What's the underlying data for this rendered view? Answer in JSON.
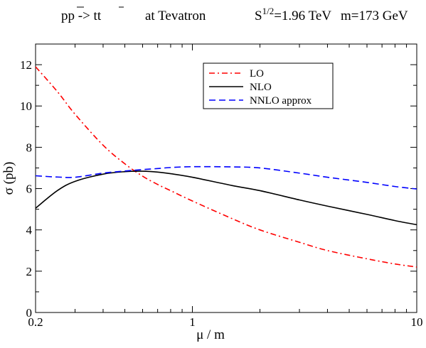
{
  "header": {
    "process_lhs": "pp",
    "process_lhs_bar": "p",
    "process_arrow": " -> ",
    "process_rhs_t": "t",
    "process_rhs_tbar": "t",
    "collider": "at  Tevatron",
    "energy_prefix": "S",
    "energy_exponent": "1/2",
    "energy_value": "=1.96 TeV",
    "mass": "m=173 GeV"
  },
  "chart_data": {
    "type": "line",
    "xscale": "log",
    "xlim": [
      0.2,
      10
    ],
    "ylim": [
      0,
      13
    ],
    "xlabel": "μ / m",
    "ylabel": "σ (pb)",
    "xticks": [
      0.2,
      1,
      10
    ],
    "xtick_labels": [
      "0.2",
      "1",
      "10"
    ],
    "yticks": [
      0,
      2,
      4,
      6,
      8,
      10,
      12
    ],
    "ytick_labels": [
      "0",
      "2",
      "4",
      "6",
      "8",
      "10",
      "12"
    ],
    "grid": false,
    "legend_position": "top-right",
    "series": [
      {
        "name": "LO",
        "color": "#ff0000",
        "dash": "dash-dot",
        "x": [
          0.2,
          0.25,
          0.3,
          0.4,
          0.5,
          0.6,
          0.7,
          0.8,
          1.0,
          1.5,
          2.0,
          3.0,
          4.0,
          6.0,
          8.0,
          10.0
        ],
        "y": [
          11.9,
          10.7,
          9.6,
          8.1,
          7.2,
          6.6,
          6.2,
          5.9,
          5.4,
          4.55,
          4.0,
          3.4,
          3.0,
          2.6,
          2.35,
          2.2
        ]
      },
      {
        "name": "NLO",
        "color": "#000000",
        "dash": "solid",
        "x": [
          0.2,
          0.25,
          0.3,
          0.4,
          0.5,
          0.6,
          0.7,
          0.8,
          1.0,
          1.5,
          2.0,
          3.0,
          4.0,
          6.0,
          8.0,
          10.0
        ],
        "y": [
          5.05,
          5.9,
          6.35,
          6.7,
          6.82,
          6.84,
          6.8,
          6.72,
          6.55,
          6.15,
          5.9,
          5.45,
          5.15,
          4.75,
          4.45,
          4.25
        ]
      },
      {
        "name": "NNLO approx",
        "color": "#0000ff",
        "dash": "dashed",
        "x": [
          0.2,
          0.25,
          0.3,
          0.4,
          0.5,
          0.6,
          0.7,
          0.8,
          1.0,
          1.5,
          2.0,
          3.0,
          4.0,
          6.0,
          8.0,
          10.0
        ],
        "y": [
          6.62,
          6.56,
          6.55,
          6.75,
          6.85,
          6.92,
          6.97,
          7.02,
          7.06,
          7.05,
          7.0,
          6.75,
          6.55,
          6.3,
          6.1,
          5.98
        ]
      }
    ]
  }
}
